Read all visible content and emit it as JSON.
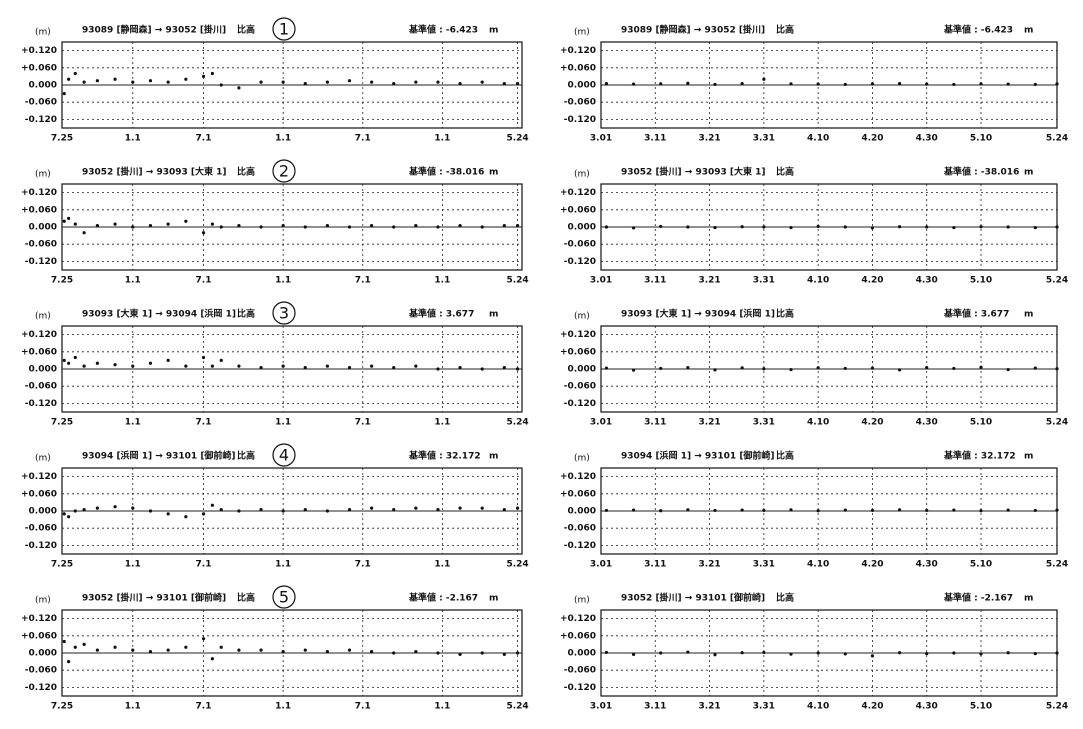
{
  "chart_data": [
    {
      "type": "scatter",
      "title": "93089 [静岡森] → 93052 [掛川]",
      "subtitle": "比高",
      "reference": "基準値 : -6.423",
      "unit": "m",
      "ylabel": "(m)",
      "annotation": "1",
      "grid": true,
      "color": "#111111",
      "xlim": [
        0,
        1040
      ],
      "xticks": [
        {
          "value": 0,
          "label": "7.25"
        },
        {
          "value": 160,
          "label": "1.1"
        },
        {
          "value": 320,
          "label": "7.1"
        },
        {
          "value": 500,
          "label": "1.1"
        },
        {
          "value": 680,
          "label": "7.1"
        },
        {
          "value": 860,
          "label": "1.1"
        },
        {
          "value": 1030,
          "label": "5.24"
        }
      ],
      "ylim": [
        -0.15,
        0.15
      ],
      "yticks": [
        {
          "value": 0.12,
          "label": "+0.120"
        },
        {
          "value": 0.06,
          "label": "+0.060"
        },
        {
          "value": 0,
          "label": "0.000"
        },
        {
          "value": -0.06,
          "label": "-0.060"
        },
        {
          "value": -0.12,
          "label": "-0.120"
        }
      ],
      "x": [
        5,
        15,
        30,
        50,
        80,
        120,
        160,
        200,
        240,
        280,
        320,
        340,
        360,
        400,
        450,
        500,
        550,
        600,
        650,
        700,
        750,
        800,
        850,
        900,
        950,
        1000,
        1030
      ],
      "values": [
        -0.03,
        0.02,
        0.04,
        0.01,
        0.015,
        0.02,
        0.01,
        0.015,
        0.01,
        0.02,
        0.03,
        0.04,
        0.0,
        -0.01,
        0.01,
        0.01,
        0.005,
        0.01,
        0.015,
        0.01,
        0.005,
        0.01,
        0.01,
        0.005,
        0.01,
        0.005,
        0.005
      ]
    },
    {
      "type": "scatter",
      "title": "93089 [静岡森] → 93052 [掛川]",
      "subtitle": "比高",
      "reference": "基準値 : -6.423",
      "unit": "m",
      "ylabel": "(m)",
      "grid": true,
      "color": "#111111",
      "xlim": [
        0,
        84
      ],
      "xticks": [
        {
          "value": 0,
          "label": "3.01"
        },
        {
          "value": 10,
          "label": "3.11"
        },
        {
          "value": 20,
          "label": "3.21"
        },
        {
          "value": 30,
          "label": "3.31"
        },
        {
          "value": 40,
          "label": "4.10"
        },
        {
          "value": 50,
          "label": "4.20"
        },
        {
          "value": 60,
          "label": "4.30"
        },
        {
          "value": 70,
          "label": "5.10"
        },
        {
          "value": 84,
          "label": "5.24"
        }
      ],
      "ylim": [
        -0.15,
        0.15
      ],
      "yticks": [
        {
          "value": 0.12,
          "label": "+0.120"
        },
        {
          "value": 0.06,
          "label": "+0.060"
        },
        {
          "value": 0,
          "label": "0.000"
        },
        {
          "value": -0.06,
          "label": "-0.060"
        },
        {
          "value": -0.12,
          "label": "-0.120"
        }
      ],
      "x": [
        1,
        6,
        11,
        16,
        21,
        26,
        30,
        35,
        40,
        45,
        50,
        55,
        60,
        65,
        70,
        75,
        80,
        84
      ],
      "values": [
        0.005,
        0.003,
        0.004,
        0.006,
        0.002,
        0.005,
        0.02,
        0.004,
        0.003,
        0.002,
        0.004,
        0.005,
        0.003,
        0.002,
        0.004,
        0.003,
        0.002,
        0.004
      ]
    },
    {
      "type": "scatter",
      "title": "93052 [掛川] → 93093 [大東 1]",
      "subtitle": "比高",
      "reference": "基準値 : -38.016",
      "unit": "m",
      "ylabel": "(m)",
      "annotation": "2",
      "grid": true,
      "color": "#111111",
      "xlim": [
        0,
        1040
      ],
      "xticks": [
        {
          "value": 0,
          "label": "7.25"
        },
        {
          "value": 160,
          "label": "1.1"
        },
        {
          "value": 320,
          "label": "7.1"
        },
        {
          "value": 500,
          "label": "1.1"
        },
        {
          "value": 680,
          "label": "7.1"
        },
        {
          "value": 860,
          "label": "1.1"
        },
        {
          "value": 1030,
          "label": "5.24"
        }
      ],
      "ylim": [
        -0.15,
        0.15
      ],
      "yticks": [
        {
          "value": 0.12,
          "label": "+0.120"
        },
        {
          "value": 0.06,
          "label": "+0.060"
        },
        {
          "value": 0,
          "label": "0.000"
        },
        {
          "value": -0.06,
          "label": "-0.060"
        },
        {
          "value": -0.12,
          "label": "-0.120"
        }
      ],
      "x": [
        5,
        15,
        30,
        50,
        80,
        120,
        160,
        200,
        240,
        280,
        320,
        340,
        360,
        400,
        450,
        500,
        550,
        600,
        650,
        700,
        750,
        800,
        850,
        900,
        950,
        1000,
        1030
      ],
      "values": [
        0.02,
        0.03,
        0.01,
        -0.02,
        0.005,
        0.01,
        0.0,
        0.005,
        0.01,
        0.02,
        -0.02,
        0.01,
        0.0,
        0.005,
        0.0,
        0.005,
        0.0,
        0.005,
        0.0,
        0.005,
        0.0,
        0.005,
        0.0,
        0.005,
        0.0,
        0.005,
        0.005
      ]
    },
    {
      "type": "scatter",
      "title": "93052 [掛川] → 93093 [大東 1]",
      "subtitle": "比高",
      "reference": "基準値 : -38.016",
      "unit": "m",
      "ylabel": "(m)",
      "grid": true,
      "color": "#111111",
      "xlim": [
        0,
        84
      ],
      "xticks": [
        {
          "value": 0,
          "label": "3.01"
        },
        {
          "value": 10,
          "label": "3.11"
        },
        {
          "value": 20,
          "label": "3.21"
        },
        {
          "value": 30,
          "label": "3.31"
        },
        {
          "value": 40,
          "label": "4.10"
        },
        {
          "value": 50,
          "label": "4.20"
        },
        {
          "value": 60,
          "label": "4.30"
        },
        {
          "value": 70,
          "label": "5.10"
        },
        {
          "value": 84,
          "label": "5.24"
        }
      ],
      "ylim": [
        -0.15,
        0.15
      ],
      "yticks": [
        {
          "value": 0.12,
          "label": "+0.120"
        },
        {
          "value": 0.06,
          "label": "+0.060"
        },
        {
          "value": 0,
          "label": "0.000"
        },
        {
          "value": -0.06,
          "label": "-0.060"
        },
        {
          "value": -0.12,
          "label": "-0.120"
        }
      ],
      "x": [
        1,
        6,
        11,
        16,
        21,
        26,
        30,
        35,
        40,
        45,
        50,
        55,
        60,
        65,
        70,
        75,
        80,
        84
      ],
      "values": [
        0.0,
        -0.003,
        0.002,
        0.0,
        -0.002,
        0.001,
        0.0,
        -0.002,
        0.002,
        0.0,
        -0.003,
        0.001,
        0.0,
        -0.002,
        0.001,
        0.0,
        -0.002,
        0.0
      ]
    },
    {
      "type": "scatter",
      "title": "93093 [大東 1] → 93094 [浜岡 1]",
      "subtitle": "比高",
      "reference": "基準値 : 3.677",
      "unit": "m",
      "ylabel": "(m)",
      "annotation": "3",
      "grid": true,
      "color": "#111111",
      "xlim": [
        0,
        1040
      ],
      "xticks": [
        {
          "value": 0,
          "label": "7.25"
        },
        {
          "value": 160,
          "label": "1.1"
        },
        {
          "value": 320,
          "label": "7.1"
        },
        {
          "value": 500,
          "label": "1.1"
        },
        {
          "value": 680,
          "label": "7.1"
        },
        {
          "value": 860,
          "label": "1.1"
        },
        {
          "value": 1030,
          "label": "5.24"
        }
      ],
      "ylim": [
        -0.15,
        0.15
      ],
      "yticks": [
        {
          "value": 0.12,
          "label": "+0.120"
        },
        {
          "value": 0.06,
          "label": "+0.060"
        },
        {
          "value": 0,
          "label": "0.000"
        },
        {
          "value": -0.06,
          "label": "-0.060"
        },
        {
          "value": -0.12,
          "label": "-0.120"
        }
      ],
      "x": [
        5,
        15,
        30,
        50,
        80,
        120,
        160,
        200,
        240,
        280,
        320,
        340,
        360,
        400,
        450,
        500,
        550,
        600,
        650,
        700,
        750,
        800,
        850,
        900,
        950,
        1000,
        1030
      ],
      "values": [
        0.03,
        0.02,
        0.04,
        0.01,
        0.02,
        0.015,
        0.01,
        0.02,
        0.03,
        0.01,
        0.04,
        0.01,
        0.03,
        0.01,
        0.005,
        0.01,
        0.005,
        0.01,
        0.005,
        0.01,
        0.005,
        0.01,
        0.0,
        0.005,
        0.0,
        0.005,
        0.0
      ]
    },
    {
      "type": "scatter",
      "title": "93093 [大東 1] → 93094 [浜岡 1]",
      "subtitle": "比高",
      "reference": "基準値 : 3.677",
      "unit": "m",
      "ylabel": "(m)",
      "grid": true,
      "color": "#111111",
      "xlim": [
        0,
        84
      ],
      "xticks": [
        {
          "value": 0,
          "label": "3.01"
        },
        {
          "value": 10,
          "label": "3.11"
        },
        {
          "value": 20,
          "label": "3.21"
        },
        {
          "value": 30,
          "label": "3.31"
        },
        {
          "value": 40,
          "label": "4.10"
        },
        {
          "value": 50,
          "label": "4.20"
        },
        {
          "value": 60,
          "label": "4.30"
        },
        {
          "value": 70,
          "label": "5.10"
        },
        {
          "value": 84,
          "label": "5.24"
        }
      ],
      "ylim": [
        -0.15,
        0.15
      ],
      "yticks": [
        {
          "value": 0.12,
          "label": "+0.120"
        },
        {
          "value": 0.06,
          "label": "+0.060"
        },
        {
          "value": 0,
          "label": "0.000"
        },
        {
          "value": -0.06,
          "label": "-0.060"
        },
        {
          "value": -0.12,
          "label": "-0.120"
        }
      ],
      "x": [
        1,
        6,
        11,
        16,
        21,
        26,
        30,
        35,
        40,
        45,
        50,
        55,
        60,
        65,
        70,
        75,
        80,
        84
      ],
      "values": [
        0.003,
        -0.004,
        0.002,
        0.005,
        -0.003,
        0.004,
        0.001,
        -0.002,
        0.004,
        0.002,
        0.003,
        -0.003,
        0.005,
        0.002,
        0.006,
        -0.002,
        0.003,
        0.001
      ]
    },
    {
      "type": "scatter",
      "title": "93094 [浜岡 1] → 93101 [御前崎]",
      "subtitle": "比高",
      "reference": "基準値 : 32.172",
      "unit": "m",
      "ylabel": "(m)",
      "annotation": "4",
      "grid": true,
      "color": "#111111",
      "xlim": [
        0,
        1040
      ],
      "xticks": [
        {
          "value": 0,
          "label": "7.25"
        },
        {
          "value": 160,
          "label": "1.1"
        },
        {
          "value": 320,
          "label": "7.1"
        },
        {
          "value": 500,
          "label": "1.1"
        },
        {
          "value": 680,
          "label": "7.1"
        },
        {
          "value": 860,
          "label": "1.1"
        },
        {
          "value": 1030,
          "label": "5.24"
        }
      ],
      "ylim": [
        -0.15,
        0.15
      ],
      "yticks": [
        {
          "value": 0.12,
          "label": "+0.120"
        },
        {
          "value": 0.06,
          "label": "+0.060"
        },
        {
          "value": 0,
          "label": "0.000"
        },
        {
          "value": -0.06,
          "label": "-0.060"
        },
        {
          "value": -0.12,
          "label": "-0.120"
        }
      ],
      "x": [
        5,
        15,
        30,
        50,
        80,
        120,
        160,
        200,
        240,
        280,
        320,
        340,
        360,
        400,
        450,
        500,
        550,
        600,
        650,
        700,
        750,
        800,
        850,
        900,
        950,
        1000,
        1030
      ],
      "values": [
        -0.01,
        -0.02,
        0.0,
        0.005,
        0.01,
        0.015,
        0.01,
        0.0,
        -0.01,
        -0.02,
        -0.01,
        0.02,
        0.005,
        0.0,
        0.005,
        0.0,
        0.005,
        0.0,
        0.005,
        0.01,
        0.005,
        0.01,
        0.005,
        0.01,
        0.01,
        0.005,
        0.01
      ]
    },
    {
      "type": "scatter",
      "title": "93094 [浜岡 1] → 93101 [御前崎]",
      "subtitle": "比高",
      "reference": "基準値 : 32.172",
      "unit": "m",
      "ylabel": "(m)",
      "grid": true,
      "color": "#111111",
      "xlim": [
        0,
        84
      ],
      "xticks": [
        {
          "value": 0,
          "label": "3.01"
        },
        {
          "value": 10,
          "label": "3.11"
        },
        {
          "value": 20,
          "label": "3.21"
        },
        {
          "value": 30,
          "label": "3.31"
        },
        {
          "value": 40,
          "label": "4.10"
        },
        {
          "value": 50,
          "label": "4.20"
        },
        {
          "value": 60,
          "label": "4.30"
        },
        {
          "value": 70,
          "label": "5.10"
        },
        {
          "value": 84,
          "label": "5.24"
        }
      ],
      "ylim": [
        -0.15,
        0.15
      ],
      "yticks": [
        {
          "value": 0.12,
          "label": "+0.120"
        },
        {
          "value": 0.06,
          "label": "+0.060"
        },
        {
          "value": 0,
          "label": "0.000"
        },
        {
          "value": -0.06,
          "label": "-0.060"
        },
        {
          "value": -0.12,
          "label": "-0.120"
        }
      ],
      "x": [
        1,
        6,
        11,
        16,
        21,
        26,
        30,
        35,
        40,
        45,
        50,
        55,
        60,
        65,
        70,
        75,
        80,
        84
      ],
      "values": [
        0.002,
        0.003,
        0.001,
        0.004,
        0.002,
        0.003,
        0.002,
        0.004,
        0.001,
        0.003,
        0.002,
        0.004,
        0.002,
        0.003,
        0.001,
        0.003,
        0.002,
        0.003
      ]
    },
    {
      "type": "scatter",
      "title": "93052 [掛川] → 93101 [御前崎]",
      "subtitle": "比高",
      "reference": "基準値 : -2.167",
      "unit": "m",
      "ylabel": "(m)",
      "annotation": "5",
      "grid": true,
      "color": "#111111",
      "xlim": [
        0,
        1040
      ],
      "xticks": [
        {
          "value": 0,
          "label": "7.25"
        },
        {
          "value": 160,
          "label": "1.1"
        },
        {
          "value": 320,
          "label": "7.1"
        },
        {
          "value": 500,
          "label": "1.1"
        },
        {
          "value": 680,
          "label": "7.1"
        },
        {
          "value": 860,
          "label": "1.1"
        },
        {
          "value": 1030,
          "label": "5.24"
        }
      ],
      "ylim": [
        -0.15,
        0.15
      ],
      "yticks": [
        {
          "value": 0.12,
          "label": "+0.120"
        },
        {
          "value": 0.06,
          "label": "+0.060"
        },
        {
          "value": 0,
          "label": "0.000"
        },
        {
          "value": -0.06,
          "label": "-0.060"
        },
        {
          "value": -0.12,
          "label": "-0.120"
        }
      ],
      "x": [
        5,
        15,
        30,
        50,
        80,
        120,
        160,
        200,
        240,
        280,
        320,
        340,
        360,
        400,
        450,
        500,
        550,
        600,
        650,
        700,
        750,
        800,
        850,
        900,
        950,
        1000,
        1030
      ],
      "values": [
        0.04,
        -0.03,
        0.02,
        0.03,
        0.01,
        0.02,
        0.01,
        0.005,
        0.01,
        0.02,
        0.05,
        -0.02,
        0.02,
        0.01,
        0.01,
        0.005,
        0.01,
        0.005,
        0.01,
        0.005,
        0.0,
        0.005,
        0.0,
        -0.005,
        0.0,
        -0.005,
        0.0
      ]
    },
    {
      "type": "scatter",
      "title": "93052 [掛川] → 93101 [御前崎]",
      "subtitle": "比高",
      "reference": "基準値 : -2.167",
      "unit": "m",
      "ylabel": "(m)",
      "grid": true,
      "color": "#111111",
      "xlim": [
        0,
        84
      ],
      "xticks": [
        {
          "value": 0,
          "label": "3.01"
        },
        {
          "value": 10,
          "label": "3.11"
        },
        {
          "value": 20,
          "label": "3.21"
        },
        {
          "value": 30,
          "label": "3.31"
        },
        {
          "value": 40,
          "label": "4.10"
        },
        {
          "value": 50,
          "label": "4.20"
        },
        {
          "value": 60,
          "label": "4.30"
        },
        {
          "value": 70,
          "label": "5.10"
        },
        {
          "value": 84,
          "label": "5.24"
        }
      ],
      "ylim": [
        -0.15,
        0.15
      ],
      "yticks": [
        {
          "value": 0.12,
          "label": "+0.120"
        },
        {
          "value": 0.06,
          "label": "+0.060"
        },
        {
          "value": 0,
          "label": "0.000"
        },
        {
          "value": -0.06,
          "label": "-0.060"
        },
        {
          "value": -0.12,
          "label": "-0.120"
        }
      ],
      "x": [
        1,
        6,
        11,
        16,
        21,
        26,
        30,
        35,
        40,
        45,
        50,
        55,
        60,
        65,
        70,
        75,
        80,
        84
      ],
      "values": [
        0.002,
        -0.005,
        0.0,
        0.003,
        -0.006,
        0.001,
        0.002,
        -0.004,
        0.0,
        -0.003,
        -0.01,
        0.001,
        -0.002,
        0.0,
        -0.003,
        0.001,
        -0.002,
        0.0
      ]
    }
  ]
}
